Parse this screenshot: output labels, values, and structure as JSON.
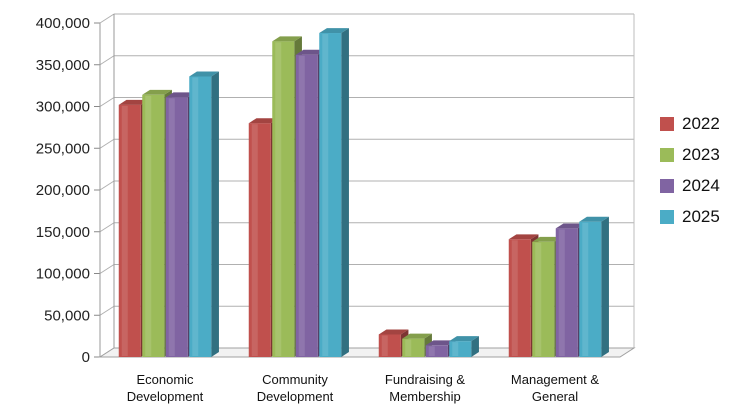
{
  "chart_data": {
    "type": "bar",
    "title": "",
    "xlabel": "",
    "ylabel": "",
    "categories": [
      [
        "Economic",
        "Development"
      ],
      [
        "Community",
        "Development"
      ],
      [
        "Fundraising &",
        "Membership"
      ],
      [
        "Management &",
        "General"
      ]
    ],
    "series": [
      {
        "name": "2022",
        "color": "#c0504d",
        "values": [
          302000,
          280000,
          27000,
          141000
        ]
      },
      {
        "name": "2023",
        "color": "#9bbb59",
        "values": [
          314000,
          378000,
          22000,
          138000
        ]
      },
      {
        "name": "2024",
        "color": "#8064a2",
        "values": [
          311000,
          362000,
          14000,
          154000
        ]
      },
      {
        "name": "2025",
        "color": "#4bacc6",
        "values": [
          336000,
          388000,
          19000,
          162000
        ]
      }
    ],
    "ylim": [
      0,
      400000
    ],
    "yticks": [
      "0",
      "50,000",
      "100,000",
      "150,000",
      "200,000",
      "250,000",
      "300,000",
      "350,000",
      "400,000"
    ],
    "grid": true,
    "legend_position": "right"
  }
}
